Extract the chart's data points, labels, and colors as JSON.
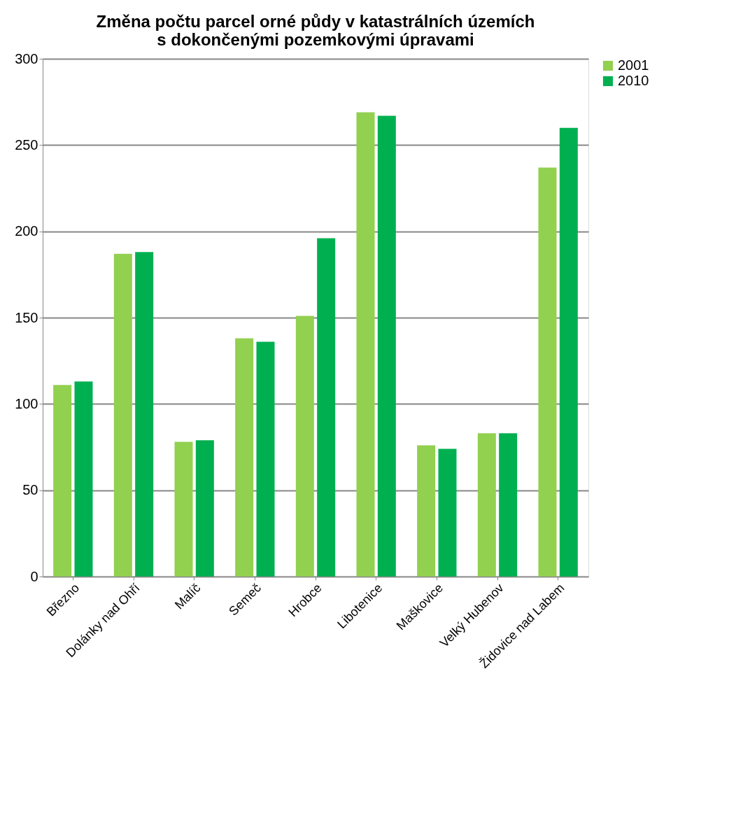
{
  "chart_data": {
    "type": "bar",
    "title": "Změna počtu parcel orné půdy v katastrálních územích s dokončenými pozemkovými úpravami",
    "categories": [
      "Březno",
      "Dolánky nad Ohří",
      "Malíč",
      "Semeč",
      "Hrobce",
      "Libotenice",
      "Maškovice",
      "Velký Hubenov",
      "Židovice nad Labem"
    ],
    "series": [
      {
        "name": "2001",
        "color": "#92d050",
        "values": [
          111,
          187,
          78,
          138,
          151,
          269,
          76,
          83,
          237
        ]
      },
      {
        "name": "2010",
        "color": "#00b050",
        "values": [
          113,
          188,
          79,
          136,
          196,
          267,
          74,
          83,
          260
        ]
      }
    ],
    "ylim": [
      0,
      300
    ],
    "yticks": [
      0,
      50,
      100,
      150,
      200,
      250,
      300
    ],
    "grid": "y",
    "legend": "right"
  }
}
